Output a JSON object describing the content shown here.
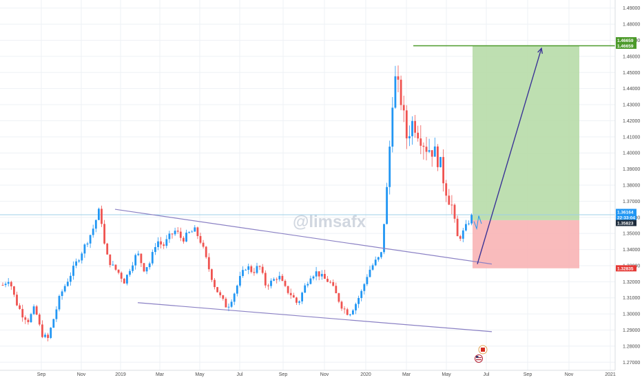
{
  "watermark": "@limsafx",
  "colors": {
    "up": "#2196f3",
    "down": "#ef5350",
    "target_zone": "#b7dba8",
    "stop_zone": "#f8b4b5",
    "target_line": "#4c9a2a",
    "price_line": "#9ccfe8",
    "trendline": "#8a80c4",
    "arrow": "#3a3396",
    "grid": "#eef1f5",
    "axis_text": "#4a4a4a"
  },
  "price_tags": [
    {
      "label": "1.46659",
      "value": 1.46659,
      "color": "#4c9a2a"
    },
    {
      "label": "1.46659",
      "value": 1.46659,
      "color": "#4c9a2a"
    },
    {
      "label": "1.36164",
      "value": 1.36164,
      "color": "#2196f3"
    },
    {
      "label": "22:33:04",
      "value": 1.358,
      "color": "#2196f3"
    },
    {
      "label": "1.35823",
      "value": 1.354,
      "color": "#1f2d3d"
    },
    {
      "label": "1.32835",
      "value": 1.32835,
      "color": "#e53935"
    }
  ],
  "icons": [
    "canada-flag-icon",
    "usa-flag-icon"
  ],
  "chart_data": {
    "type": "candlestick",
    "symbol_pair": "USD/CAD",
    "x_ticks": [
      "Sep",
      "Nov",
      "2019",
      "Mar",
      "May",
      "Jul",
      "Sep",
      "Nov",
      "2020",
      "Mar",
      "May",
      "Jul",
      "Sep",
      "Nov",
      "2021"
    ],
    "y_ticks": [
      "1.27000",
      "1.28000",
      "1.29000",
      "1.30000",
      "1.31000",
      "1.32000",
      "1.33000",
      "1.34000",
      "1.35000",
      "1.36000",
      "1.37000",
      "1.38000",
      "1.39000",
      "1.40000",
      "1.41000",
      "1.42000",
      "1.43000",
      "1.44000",
      "1.45000",
      "1.46000",
      "1.47000",
      "1.48000",
      "1.49000"
    ],
    "ylim": [
      1.265,
      1.495
    ],
    "grid": true,
    "close_path": [
      [
        0,
        1.318
      ],
      [
        2,
        1.322
      ],
      [
        4,
        1.308
      ],
      [
        6,
        1.3
      ],
      [
        8,
        1.296
      ],
      [
        10,
        1.304
      ],
      [
        12,
        1.288
      ],
      [
        14,
        1.284
      ],
      [
        16,
        1.298
      ],
      [
        18,
        1.312
      ],
      [
        20,
        1.32
      ],
      [
        22,
        1.328
      ],
      [
        24,
        1.336
      ],
      [
        26,
        1.344
      ],
      [
        28,
        1.352
      ],
      [
        30,
        1.364
      ],
      [
        31,
        1.356
      ],
      [
        32,
        1.338
      ],
      [
        34,
        1.33
      ],
      [
        36,
        1.326
      ],
      [
        38,
        1.32
      ],
      [
        40,
        1.33
      ],
      [
        42,
        1.338
      ],
      [
        44,
        1.328
      ],
      [
        46,
        1.332
      ],
      [
        48,
        1.346
      ],
      [
        50,
        1.342
      ],
      [
        52,
        1.348
      ],
      [
        54,
        1.352
      ],
      [
        56,
        1.346
      ],
      [
        58,
        1.35
      ],
      [
        60,
        1.352
      ],
      [
        62,
        1.344
      ],
      [
        64,
        1.33
      ],
      [
        66,
        1.318
      ],
      [
        68,
        1.31
      ],
      [
        70,
        1.304
      ],
      [
        72,
        1.312
      ],
      [
        74,
        1.322
      ],
      [
        76,
        1.33
      ],
      [
        78,
        1.326
      ],
      [
        80,
        1.33
      ],
      [
        82,
        1.318
      ],
      [
        84,
        1.32
      ],
      [
        86,
        1.324
      ],
      [
        88,
        1.316
      ],
      [
        90,
        1.312
      ],
      [
        92,
        1.306
      ],
      [
        94,
        1.316
      ],
      [
        96,
        1.324
      ],
      [
        98,
        1.326
      ],
      [
        100,
        1.322
      ],
      [
        102,
        1.32
      ],
      [
        104,
        1.312
      ],
      [
        106,
        1.304
      ],
      [
        108,
        1.3
      ],
      [
        110,
        1.306
      ],
      [
        112,
        1.314
      ],
      [
        114,
        1.326
      ],
      [
        116,
        1.332
      ],
      [
        118,
        1.336
      ],
      [
        120,
        1.38
      ],
      [
        122,
        1.448
      ],
      [
        124,
        1.436
      ],
      [
        126,
        1.41
      ],
      [
        128,
        1.42
      ],
      [
        130,
        1.412
      ],
      [
        132,
        1.404
      ],
      [
        134,
        1.402
      ],
      [
        136,
        1.396
      ],
      [
        138,
        1.38
      ],
      [
        140,
        1.368
      ],
      [
        142,
        1.346
      ],
      [
        144,
        1.352
      ],
      [
        146,
        1.36
      ],
      [
        147,
        1.361
      ]
    ],
    "trendlines": [
      {
        "name": "upper-channel",
        "points": [
          [
            "2018-12",
            1.365
          ],
          [
            "2020-06",
            1.331
          ]
        ]
      },
      {
        "name": "lower-channel",
        "points": [
          [
            "2019-01",
            1.307
          ],
          [
            "2020-07",
            1.289
          ]
        ]
      }
    ],
    "position": {
      "type": "long",
      "entry": 1.35823,
      "target": 1.46659,
      "stop": 1.32835,
      "current_price": 1.36164
    },
    "projection": {
      "from": 1.331,
      "to": 1.465
    }
  }
}
